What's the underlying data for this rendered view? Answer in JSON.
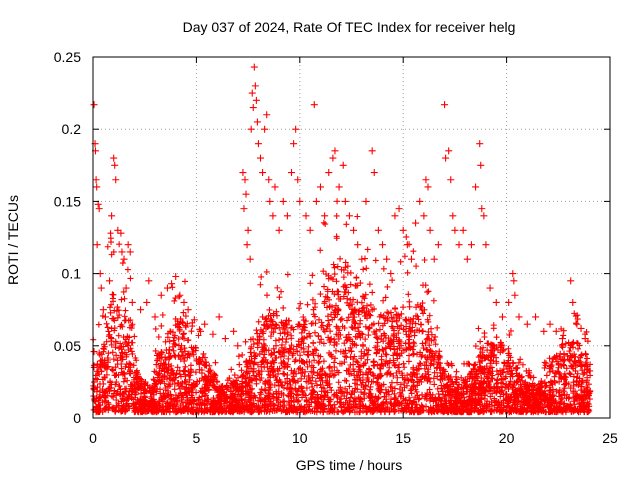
{
  "chart_data": {
    "type": "scatter",
    "title": "Day 037 of 2024, Rate Of TEC Index for receiver helg",
    "xlabel": "GPS time / hours",
    "ylabel": "ROTI / TECUs",
    "xlim": [
      0,
      25
    ],
    "ylim": [
      0,
      0.25
    ],
    "x_ticks": [
      0,
      5,
      10,
      15,
      20,
      25
    ],
    "x_tick_labels": [
      "0",
      "5",
      "10",
      "15",
      "20",
      "25"
    ],
    "y_ticks": [
      0,
      0.05,
      0.1,
      0.15,
      0.2,
      0.25
    ],
    "y_tick_labels": [
      "0",
      "0.05",
      "0.1",
      "0.15",
      "0.2",
      "0.25"
    ],
    "grid": true,
    "marker": "plus",
    "series": [
      {
        "color": "#ff0000",
        "points": [
          [
            0.05,
            0.217
          ],
          [
            0.1,
            0.19
          ],
          [
            0.12,
            0.185
          ],
          [
            0.15,
            0.165
          ],
          [
            0.18,
            0.16
          ],
          [
            0.25,
            0.148
          ],
          [
            0.3,
            0.145
          ],
          [
            0.2,
            0.12
          ],
          [
            0.35,
            0.1
          ],
          [
            0.4,
            0.09
          ],
          [
            0.5,
            0.075
          ],
          [
            0.6,
            0.07
          ],
          [
            0.3,
            0.045
          ],
          [
            0.05,
            0.046
          ],
          [
            1.0,
            0.18
          ],
          [
            1.05,
            0.175
          ],
          [
            1.1,
            0.165
          ],
          [
            0.9,
            0.14
          ],
          [
            1.2,
            0.13
          ],
          [
            1.35,
            0.128
          ],
          [
            1.4,
            0.115
          ],
          [
            1.5,
            0.11
          ],
          [
            1.7,
            0.12
          ],
          [
            1.8,
            0.115
          ],
          [
            0.8,
            0.095
          ],
          [
            1.6,
            0.09
          ],
          [
            1.9,
            0.08
          ],
          [
            2.3,
            0.075
          ],
          [
            2.6,
            0.08
          ],
          [
            2.7,
            0.095
          ],
          [
            3.0,
            0.07
          ],
          [
            3.3,
            0.085
          ],
          [
            3.6,
            0.09
          ],
          [
            3.8,
            0.093
          ],
          [
            4.0,
            0.098
          ],
          [
            4.2,
            0.085
          ],
          [
            4.4,
            0.08
          ],
          [
            4.6,
            0.075
          ],
          [
            4.9,
            0.068
          ],
          [
            5.2,
            0.06
          ],
          [
            5.4,
            0.065
          ],
          [
            5.8,
            0.058
          ],
          [
            6.1,
            0.07
          ],
          [
            6.4,
            0.055
          ],
          [
            6.8,
            0.06
          ],
          [
            7.0,
            0.05
          ],
          [
            7.25,
            0.17
          ],
          [
            7.35,
            0.165
          ],
          [
            7.4,
            0.155
          ],
          [
            7.3,
            0.145
          ],
          [
            7.5,
            0.13
          ],
          [
            7.45,
            0.12
          ],
          [
            7.6,
            0.11
          ],
          [
            7.65,
            0.2
          ],
          [
            7.7,
            0.225
          ],
          [
            7.75,
            0.215
          ],
          [
            7.8,
            0.243
          ],
          [
            7.85,
            0.23
          ],
          [
            7.9,
            0.22
          ],
          [
            7.95,
            0.205
          ],
          [
            8.0,
            0.19
          ],
          [
            8.1,
            0.18
          ],
          [
            8.2,
            0.17
          ],
          [
            8.3,
            0.2
          ],
          [
            8.4,
            0.21
          ],
          [
            8.5,
            0.165
          ],
          [
            8.55,
            0.15
          ],
          [
            8.7,
            0.14
          ],
          [
            8.8,
            0.16
          ],
          [
            9.0,
            0.13
          ],
          [
            9.2,
            0.15
          ],
          [
            9.4,
            0.14
          ],
          [
            9.6,
            0.17
          ],
          [
            9.7,
            0.19
          ],
          [
            9.8,
            0.2
          ],
          [
            9.9,
            0.165
          ],
          [
            10.0,
            0.15
          ],
          [
            10.3,
            0.14
          ],
          [
            10.5,
            0.13
          ],
          [
            10.7,
            0.217
          ],
          [
            10.8,
            0.15
          ],
          [
            11.0,
            0.16
          ],
          [
            11.2,
            0.14
          ],
          [
            11.4,
            0.17
          ],
          [
            11.6,
            0.18
          ],
          [
            11.7,
            0.185
          ],
          [
            11.9,
            0.16
          ],
          [
            12.1,
            0.175
          ],
          [
            12.2,
            0.15
          ],
          [
            12.4,
            0.14
          ],
          [
            12.6,
            0.13
          ],
          [
            12.8,
            0.12
          ],
          [
            13.0,
            0.11
          ],
          [
            13.2,
            0.15
          ],
          [
            13.5,
            0.185
          ],
          [
            13.6,
            0.17
          ],
          [
            13.8,
            0.13
          ],
          [
            14.0,
            0.12
          ],
          [
            14.2,
            0.11
          ],
          [
            14.4,
            0.1
          ],
          [
            14.6,
            0.14
          ],
          [
            14.8,
            0.145
          ],
          [
            15.0,
            0.13
          ],
          [
            15.2,
            0.12
          ],
          [
            15.4,
            0.11
          ],
          [
            15.6,
            0.135
          ],
          [
            15.8,
            0.15
          ],
          [
            16.0,
            0.14
          ],
          [
            16.1,
            0.165
          ],
          [
            16.2,
            0.16
          ],
          [
            16.3,
            0.13
          ],
          [
            16.5,
            0.11
          ],
          [
            16.7,
            0.12
          ],
          [
            17.0,
            0.217
          ],
          [
            17.05,
            0.18
          ],
          [
            17.2,
            0.185
          ],
          [
            17.3,
            0.165
          ],
          [
            17.4,
            0.14
          ],
          [
            17.5,
            0.13
          ],
          [
            17.7,
            0.12
          ],
          [
            17.9,
            0.13
          ],
          [
            18.1,
            0.11
          ],
          [
            18.3,
            0.12
          ],
          [
            18.5,
            0.16
          ],
          [
            18.7,
            0.19
          ],
          [
            18.75,
            0.175
          ],
          [
            18.8,
            0.145
          ],
          [
            18.9,
            0.14
          ],
          [
            19.0,
            0.12
          ],
          [
            19.2,
            0.09
          ],
          [
            19.5,
            0.08
          ],
          [
            19.8,
            0.07
          ],
          [
            20.1,
            0.08
          ],
          [
            20.3,
            0.1
          ],
          [
            20.35,
            0.095
          ],
          [
            20.4,
            0.085
          ],
          [
            20.6,
            0.07
          ],
          [
            21.0,
            0.065
          ],
          [
            21.4,
            0.07
          ],
          [
            21.8,
            0.06
          ],
          [
            22.1,
            0.065
          ],
          [
            22.4,
            0.06
          ],
          [
            22.7,
            0.055
          ],
          [
            23.1,
            0.095
          ],
          [
            23.2,
            0.08
          ],
          [
            23.4,
            0.065
          ],
          [
            23.6,
            0.062
          ],
          [
            23.8,
            0.055
          ]
        ]
      }
    ]
  }
}
